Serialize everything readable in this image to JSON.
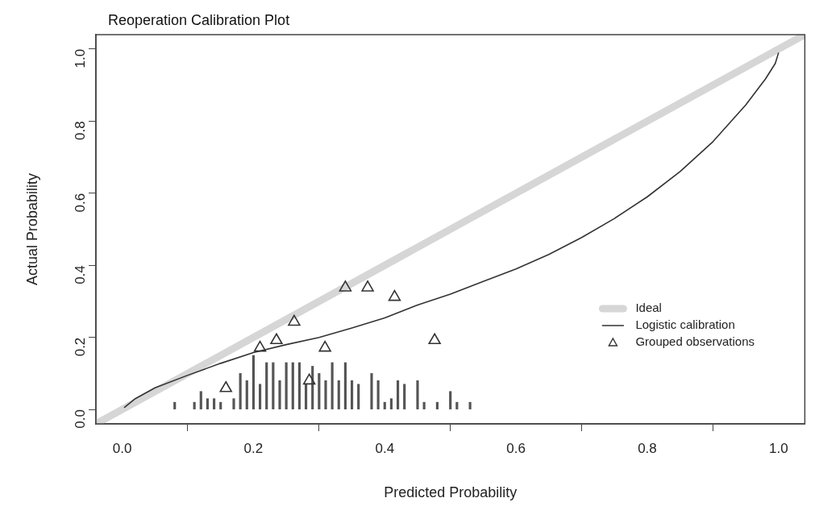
{
  "chart_data": {
    "type": "line",
    "title": "Reoperation Calibration Plot",
    "xlabel": "Predicted Probability",
    "ylabel": "Actual Probability",
    "xlim": [
      -0.04,
      1.04
    ],
    "ylim": [
      -0.04,
      1.04
    ],
    "xticks": [
      "0.0",
      0.2,
      0.4,
      0.6,
      0.8,
      "1.0"
    ],
    "yticks": [
      "0.0",
      0.2,
      0.4,
      0.6,
      0.8,
      "1.0"
    ],
    "grid": false,
    "legend": "bottom right",
    "series": [
      {
        "name": "Ideal",
        "type": "line",
        "color": "#d6d6d6",
        "x": [
          -0.04,
          1.04
        ],
        "values": [
          -0.04,
          1.04
        ]
      },
      {
        "name": "Logistic calibration",
        "color": "#333333",
        "x": [
          0.003,
          0.02,
          0.05,
          0.1,
          0.15,
          0.2,
          0.25,
          0.3,
          0.35,
          0.4,
          0.45,
          0.5,
          0.55,
          0.6,
          0.65,
          0.7,
          0.75,
          0.8,
          0.85,
          0.9,
          0.95,
          0.98,
          0.995,
          1.0
        ],
        "values": [
          0.005,
          0.03,
          0.06,
          0.095,
          0.128,
          0.158,
          0.18,
          0.2,
          0.226,
          0.254,
          0.29,
          0.32,
          0.355,
          0.39,
          0.43,
          0.477,
          0.53,
          0.59,
          0.66,
          0.743,
          0.845,
          0.917,
          0.96,
          0.99
        ]
      },
      {
        "name": "Grouped observations",
        "type": "scatter",
        "marker": "triangle",
        "color": "#333333",
        "x": [
          0.158,
          0.21,
          0.235,
          0.262,
          0.285,
          0.309,
          0.34,
          0.374,
          0.415,
          0.476
        ],
        "values": [
          0.059,
          0.171,
          0.192,
          0.243,
          0.08,
          0.171,
          0.338,
          0.338,
          0.312,
          0.192
        ]
      },
      {
        "type": "bar",
        "color": "#555555",
        "x": [
          0.08,
          0.11,
          0.12,
          0.13,
          0.14,
          0.15,
          0.17,
          0.18,
          0.19,
          0.2,
          0.21,
          0.22,
          0.23,
          0.24,
          0.25,
          0.26,
          0.27,
          0.28,
          0.29,
          0.3,
          0.31,
          0.32,
          0.33,
          0.34,
          0.35,
          0.36,
          0.38,
          0.39,
          0.4,
          0.41,
          0.42,
          0.43,
          0.45,
          0.46,
          0.48,
          0.5,
          0.51,
          0.53
        ],
        "values": [
          0.02,
          0.02,
          0.05,
          0.03,
          0.03,
          0.02,
          0.03,
          0.1,
          0.08,
          0.15,
          0.07,
          0.13,
          0.13,
          0.08,
          0.13,
          0.13,
          0.13,
          0.07,
          0.12,
          0.1,
          0.08,
          0.13,
          0.08,
          0.13,
          0.08,
          0.07,
          0.1,
          0.08,
          0.02,
          0.03,
          0.08,
          0.07,
          0.08,
          0.02,
          0.02,
          0.05,
          0.02,
          0.02
        ]
      }
    ]
  }
}
